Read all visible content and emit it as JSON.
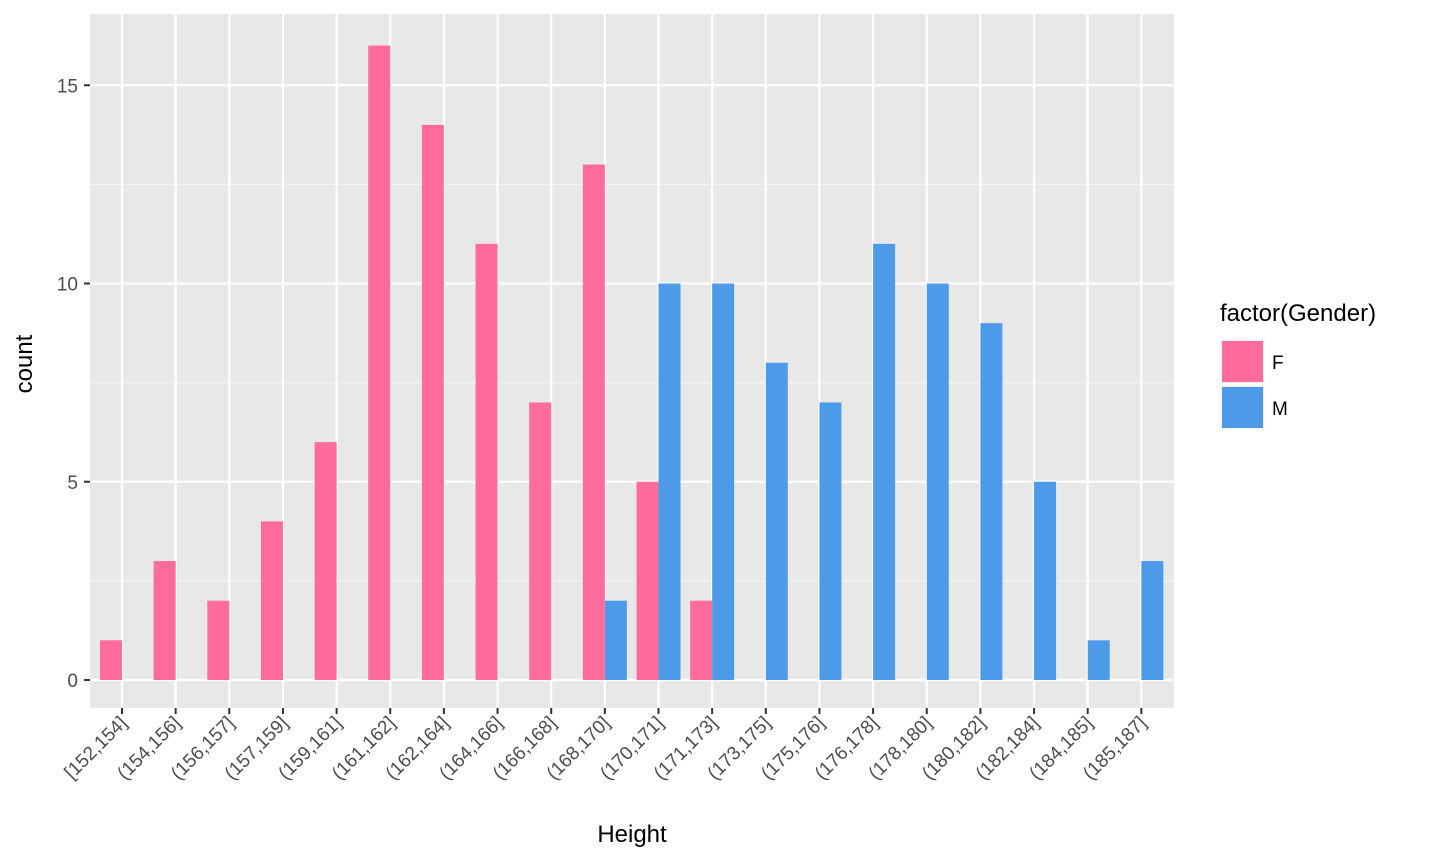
{
  "chart_data": {
    "type": "bar",
    "title": "",
    "xlabel": "Height",
    "ylabel": "count",
    "ylim": [
      0,
      16.8
    ],
    "yticks": [
      0,
      5,
      10,
      15
    ],
    "grid": true,
    "legend": {
      "title": "factor(Gender)",
      "placement": "right",
      "entries": [
        "F",
        "M"
      ]
    },
    "categories": [
      "[152,154]",
      "(154,156]",
      "(156,157]",
      "(157,159]",
      "(159,161]",
      "(161,162]",
      "(162,164]",
      "(164,166]",
      "(166,168]",
      "(168,170]",
      "(170,171]",
      "(171,173]",
      "(173,175]",
      "(175,176]",
      "(176,178]",
      "(178,180]",
      "(180,182]",
      "(182,184]",
      "(184,185]",
      "(185,187]"
    ],
    "series": [
      {
        "name": "F",
        "color": "#FF6B9D",
        "values": [
          1,
          3,
          2,
          4,
          6,
          16,
          14,
          11,
          7,
          13,
          5,
          2,
          0,
          0,
          0,
          0,
          0,
          0,
          0,
          0
        ]
      },
      {
        "name": "M",
        "color": "#4D9BE8",
        "values": [
          0,
          0,
          0,
          0,
          0,
          0,
          0,
          0,
          0,
          2,
          10,
          10,
          8,
          7,
          11,
          10,
          9,
          5,
          1,
          3
        ]
      }
    ]
  }
}
